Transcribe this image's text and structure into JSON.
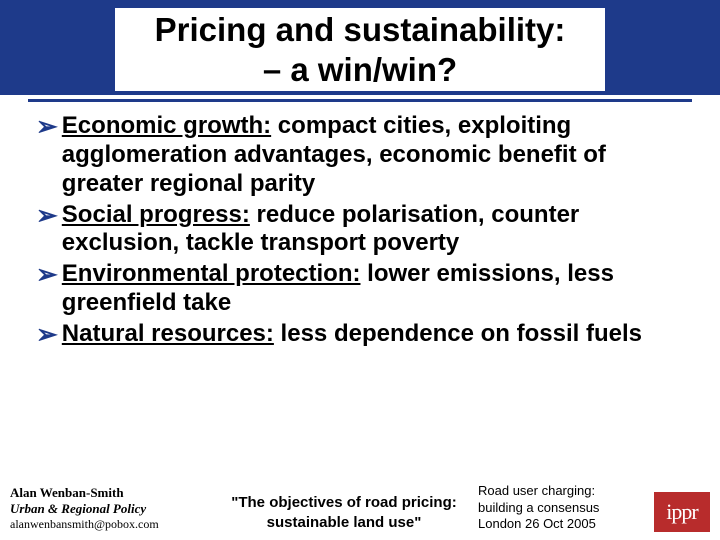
{
  "title_line1": "Pricing and sustainability:",
  "title_line2": "– a win/win?",
  "bullets": [
    {
      "lead": "Economic growth:",
      "rest": " compact cities, exploiting agglomeration advantages, economic benefit of greater regional parity"
    },
    {
      "lead": "Social progress:",
      "rest": " reduce polarisation, counter exclusion, tackle transport poverty"
    },
    {
      "lead": "Environmental protection:",
      "rest": " lower emissions, less greenfield take"
    },
    {
      "lead": "Natural resources:",
      "rest": " less dependence on fossil fuels"
    }
  ],
  "bullet_marker": "➢",
  "footer": {
    "author": "Alan Wenban-Smith",
    "role": "Urban & Regional Policy",
    "email": "alanwenbansmith@pobox.com",
    "center_line1": "\"The objectives of road pricing:",
    "center_line2": "sustainable land use\"",
    "right_line1": "Road user charging:",
    "right_line2": "building a consensus",
    "right_line3": "London 26 Oct 2005",
    "logo_text": "ippr"
  },
  "colors": {
    "brand_blue": "#1e3a8a",
    "logo_bg": "#b82c2c",
    "background": "#ffffff",
    "text": "#000000"
  }
}
